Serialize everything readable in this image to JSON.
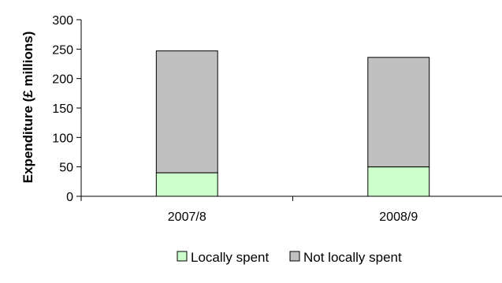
{
  "chart_data": {
    "type": "bar",
    "stacked": true,
    "categories": [
      "2007/8",
      "2008/9"
    ],
    "series": [
      {
        "name": "Locally spent",
        "values": [
          40,
          50
        ],
        "color": "#ccffcc"
      },
      {
        "name": "Not locally spent",
        "values": [
          207,
          186
        ],
        "color": "#c0c0c0"
      }
    ],
    "ylabel": "Expenditure (£ millions)",
    "xlabel": "",
    "ylim": [
      0,
      300
    ],
    "yticks": [
      0,
      50,
      100,
      150,
      200,
      250,
      300
    ],
    "grid": false,
    "legend_position": "bottom"
  }
}
